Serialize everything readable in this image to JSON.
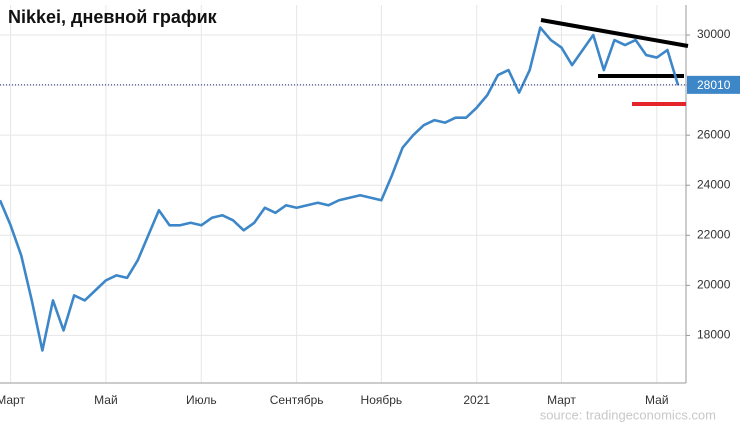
{
  "chart_data": {
    "type": "line",
    "title": "Nikkei, дневной график",
    "source": "source: tradingeconomics.com",
    "categories": [
      null,
      "Март",
      null,
      null,
      null,
      null,
      null,
      null,
      null,
      null,
      "Май",
      null,
      null,
      null,
      null,
      null,
      null,
      null,
      null,
      "Июль",
      null,
      null,
      null,
      null,
      null,
      null,
      null,
      null,
      "Сентябрь",
      null,
      null,
      null,
      null,
      null,
      null,
      null,
      "Ноябрь",
      null,
      null,
      null,
      null,
      null,
      null,
      null,
      null,
      "2021",
      null,
      null,
      null,
      null,
      null,
      null,
      null,
      "Март",
      null,
      null,
      null,
      null,
      null,
      null,
      null,
      null,
      "Май",
      null,
      null
    ],
    "series": [
      {
        "name": "Nikkei",
        "color": "#3d87c8",
        "values": [
          23400,
          22400,
          21200,
          19400,
          17400,
          19400,
          18200,
          19600,
          19400,
          19800,
          20200,
          20400,
          20300,
          21000,
          22000,
          23000,
          22400,
          22400,
          22500,
          22400,
          22700,
          22800,
          22600,
          22200,
          22500,
          23100,
          22900,
          23200,
          23100,
          23200,
          23300,
          23200,
          23400,
          23500,
          23600,
          23500,
          23400,
          24400,
          25500,
          26000,
          26400,
          26600,
          26500,
          26700,
          26700,
          27100,
          27600,
          28400,
          28600,
          27700,
          28600,
          30300,
          29800,
          29500,
          28800,
          29400,
          30000,
          28600,
          29800,
          29600,
          29800,
          29200,
          29100,
          29400,
          28000
        ]
      }
    ],
    "last_value": 28010,
    "ylim": [
      16100,
      31200
    ],
    "yticks": [
      18000,
      20000,
      22000,
      24000,
      26000,
      28000,
      30000
    ],
    "grid": true
  }
}
